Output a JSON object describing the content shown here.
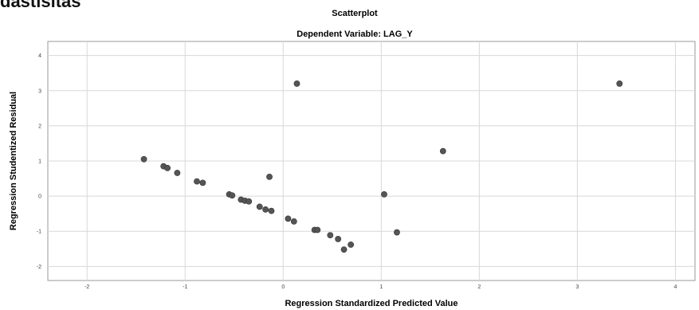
{
  "page": {
    "heading": "dastisitas"
  },
  "chart_data": {
    "type": "scatter",
    "title": "Scatterplot",
    "subtitle": "Dependent Variable: LAG_Y",
    "xlabel": "Regression Standardized Predicted Value",
    "ylabel": "Regression Studentized Residual",
    "xlim": [
      -2.4,
      4.2
    ],
    "ylim": [
      -2.4,
      4.4
    ],
    "xticks": [
      -2,
      -1,
      0,
      1,
      2,
      3,
      4
    ],
    "yticks": [
      -2,
      -1,
      0,
      1,
      2,
      3,
      4
    ],
    "xtick_labels": [
      "-2",
      "-1",
      "0",
      "1",
      "2",
      "3",
      "4"
    ],
    "ytick_labels": [
      "-2",
      "-1",
      "0",
      "1",
      "2",
      "3",
      "4"
    ],
    "grid": true,
    "point_color": "#555555",
    "grid_color": "#d8d8d8",
    "points": [
      {
        "x": -1.42,
        "y": 1.05
      },
      {
        "x": -1.22,
        "y": 0.85
      },
      {
        "x": -1.18,
        "y": 0.8
      },
      {
        "x": -1.08,
        "y": 0.66
      },
      {
        "x": -0.88,
        "y": 0.42
      },
      {
        "x": -0.82,
        "y": 0.38
      },
      {
        "x": -0.55,
        "y": 0.05
      },
      {
        "x": -0.52,
        "y": 0.02
      },
      {
        "x": -0.43,
        "y": -0.1
      },
      {
        "x": -0.39,
        "y": -0.13
      },
      {
        "x": -0.35,
        "y": -0.15
      },
      {
        "x": -0.24,
        "y": -0.3
      },
      {
        "x": -0.18,
        "y": -0.38
      },
      {
        "x": -0.12,
        "y": -0.42
      },
      {
        "x": -0.14,
        "y": 0.55
      },
      {
        "x": 0.05,
        "y": -0.64
      },
      {
        "x": 0.11,
        "y": -0.72
      },
      {
        "x": 0.14,
        "y": 3.2
      },
      {
        "x": 0.32,
        "y": -0.96
      },
      {
        "x": 0.35,
        "y": -0.96
      },
      {
        "x": 0.48,
        "y": -1.11
      },
      {
        "x": 0.56,
        "y": -1.22
      },
      {
        "x": 0.62,
        "y": -1.52
      },
      {
        "x": 0.69,
        "y": -1.38
      },
      {
        "x": 1.03,
        "y": 0.05
      },
      {
        "x": 1.16,
        "y": -1.03
      },
      {
        "x": 1.63,
        "y": 1.28
      },
      {
        "x": 3.43,
        "y": 3.2
      }
    ]
  }
}
